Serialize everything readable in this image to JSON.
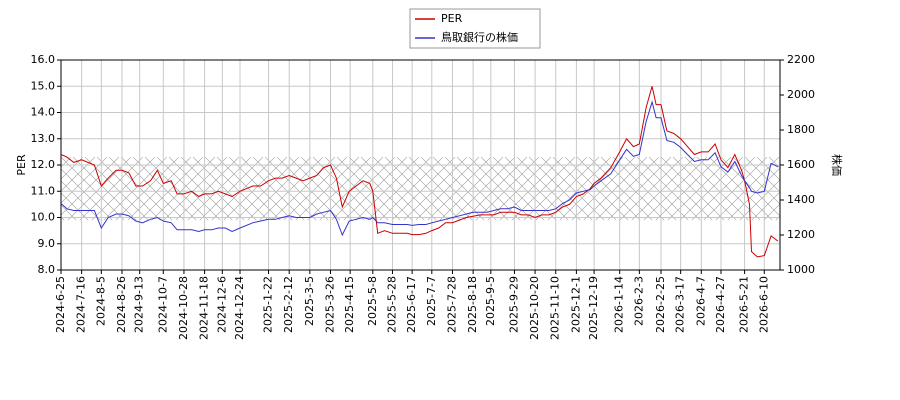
{
  "chart_data": {
    "type": "line",
    "ylabel": "PER",
    "y2label": "株価",
    "xlim": [
      "2024-6-25",
      "2026-6-26"
    ],
    "xticks": [
      "2024-6-25",
      "2024-7-16",
      "2024-8-5",
      "2024-8-26",
      "2024-9-13",
      "2024-10-7",
      "2024-10-28",
      "2024-11-18",
      "2024-12-6",
      "2024-12-24",
      "2025-1-22",
      "2025-2-12",
      "2025-3-5",
      "2025-3-26",
      "2025-4-15",
      "2025-5-8",
      "2025-5-28",
      "2025-6-17",
      "2025-7-7",
      "2025-7-28",
      "2025-8-18",
      "2025-9-5",
      "2025-9-29",
      "2025-10-20",
      "2025-11-10",
      "2025-12-1",
      "2025-12-19",
      "2026-1-14",
      "2026-2-3",
      "2026-2-25",
      "2026-3-17",
      "2026-4-7",
      "2026-4-27",
      "2026-5-21",
      "2026-6-10"
    ],
    "ylim": [
      8,
      16
    ],
    "yticks": [
      {
        "value": 8,
        "label": "8.0"
      },
      {
        "value": 9,
        "label": "9.0"
      },
      {
        "value": 10,
        "label": "10.0"
      },
      {
        "value": 11,
        "label": "11.0"
      },
      {
        "value": 12,
        "label": "12.0"
      },
      {
        "value": 13,
        "label": "13.0"
      },
      {
        "value": 14,
        "label": "14.0"
      },
      {
        "value": 15,
        "label": "15.0"
      },
      {
        "value": 16,
        "label": "16.0"
      }
    ],
    "y2lim": [
      1000,
      2200
    ],
    "y2ticks": [
      1000,
      1200,
      1400,
      1600,
      1800,
      2000,
      2200
    ],
    "grid": true,
    "legend": "top",
    "band": [
      9.9,
      12.3
    ],
    "x": [
      "2024-6-25",
      "2024-7-1",
      "2024-7-8",
      "2024-7-16",
      "2024-7-29",
      "2024-8-5",
      "2024-8-12",
      "2024-8-20",
      "2024-8-26",
      "2024-9-2",
      "2024-9-9",
      "2024-9-16",
      "2024-9-24",
      "2024-10-1",
      "2024-10-7",
      "2024-10-15",
      "2024-10-21",
      "2024-10-28",
      "2024-11-5",
      "2024-11-12",
      "2024-11-18",
      "2024-11-25",
      "2024-12-2",
      "2024-12-9",
      "2024-12-16",
      "2024-12-24",
      "2025-1-6",
      "2025-1-14",
      "2025-1-22",
      "2025-1-29",
      "2025-2-5",
      "2025-2-12",
      "2025-2-19",
      "2025-2-26",
      "2025-3-5",
      "2025-3-12",
      "2025-3-19",
      "2025-3-26",
      "2025-4-1",
      "2025-4-7",
      "2025-4-14",
      "2025-4-21",
      "2025-4-28",
      "2025-5-5",
      "2025-5-8",
      "2025-5-13",
      "2025-5-20",
      "2025-5-28",
      "2025-6-5",
      "2025-6-12",
      "2025-6-17",
      "2025-6-24",
      "2025-7-1",
      "2025-7-7",
      "2025-7-14",
      "2025-7-21",
      "2025-7-28",
      "2025-8-4",
      "2025-8-11",
      "2025-8-18",
      "2025-8-25",
      "2025-9-1",
      "2025-9-8",
      "2025-9-15",
      "2025-9-22",
      "2025-9-29",
      "2025-10-6",
      "2025-10-13",
      "2025-10-20",
      "2025-10-27",
      "2025-11-3",
      "2025-11-10",
      "2025-11-17",
      "2025-11-24",
      "2025-12-1",
      "2025-12-8",
      "2025-12-15",
      "2025-12-19",
      "2025-12-26",
      "2026-1-5",
      "2026-1-14",
      "2026-1-21",
      "2026-1-28",
      "2026-2-3",
      "2026-2-10",
      "2026-2-16",
      "2026-2-20",
      "2026-2-25",
      "2026-3-3",
      "2026-3-10",
      "2026-3-17",
      "2026-3-24",
      "2026-3-31",
      "2026-4-7",
      "2026-4-14",
      "2026-4-21",
      "2026-4-27",
      "2026-5-4",
      "2026-5-11",
      "2026-5-18",
      "2026-5-21",
      "2026-5-26",
      "2026-5-28",
      "2026-6-3",
      "2026-6-10",
      "2026-6-17",
      "2026-6-24"
    ],
    "series": [
      {
        "name": "PER",
        "color": "#cc0000",
        "values": [
          12.4,
          12.3,
          12.1,
          12.2,
          12.0,
          11.2,
          11.5,
          11.8,
          11.8,
          11.7,
          11.2,
          11.2,
          11.4,
          11.8,
          11.3,
          11.4,
          10.9,
          10.9,
          11.0,
          10.8,
          10.9,
          10.9,
          11.0,
          10.9,
          10.8,
          11.0,
          11.2,
          11.2,
          11.4,
          11.5,
          11.5,
          11.6,
          11.5,
          11.4,
          11.5,
          11.6,
          11.9,
          12.0,
          11.5,
          10.4,
          11.0,
          11.2,
          11.4,
          11.3,
          11.0,
          9.4,
          9.5,
          9.4,
          9.4,
          9.4,
          9.35,
          9.35,
          9.4,
          9.5,
          9.6,
          9.8,
          9.8,
          9.9,
          10.0,
          10.05,
          10.1,
          10.1,
          10.1,
          10.2,
          10.2,
          10.2,
          10.1,
          10.1,
          10.0,
          10.1,
          10.1,
          10.2,
          10.4,
          10.5,
          10.8,
          10.9,
          11.1,
          11.3,
          11.5,
          11.9,
          12.5,
          13.0,
          12.7,
          12.8,
          14.2,
          15.0,
          14.3,
          14.3,
          13.3,
          13.2,
          13.0,
          12.7,
          12.4,
          12.5,
          12.5,
          12.8,
          12.2,
          11.9,
          12.4,
          11.8,
          11.4,
          10.5,
          8.7,
          8.5,
          8.55,
          9.3,
          9.1
        ]
      },
      {
        "name": "鳥取銀行の株価",
        "color": "#3333cc",
        "axis": "y2",
        "values": [
          1380,
          1350,
          1340,
          1340,
          1340,
          1240,
          1300,
          1320,
          1320,
          1310,
          1280,
          1270,
          1290,
          1300,
          1280,
          1270,
          1230,
          1230,
          1230,
          1220,
          1230,
          1230,
          1240,
          1240,
          1220,
          1240,
          1270,
          1280,
          1290,
          1290,
          1300,
          1310,
          1300,
          1300,
          1300,
          1320,
          1330,
          1340,
          1290,
          1200,
          1280,
          1290,
          1300,
          1290,
          1300,
          1270,
          1270,
          1260,
          1260,
          1260,
          1255,
          1260,
          1260,
          1270,
          1280,
          1290,
          1300,
          1310,
          1320,
          1330,
          1330,
          1330,
          1340,
          1350,
          1350,
          1360,
          1340,
          1340,
          1340,
          1340,
          1340,
          1350,
          1380,
          1400,
          1440,
          1450,
          1460,
          1480,
          1510,
          1550,
          1630,
          1690,
          1650,
          1660,
          1850,
          1960,
          1870,
          1870,
          1740,
          1730,
          1700,
          1660,
          1620,
          1630,
          1630,
          1670,
          1590,
          1560,
          1620,
          1540,
          1510,
          1470,
          1450,
          1440,
          1450,
          1610,
          1590
        ]
      }
    ]
  }
}
